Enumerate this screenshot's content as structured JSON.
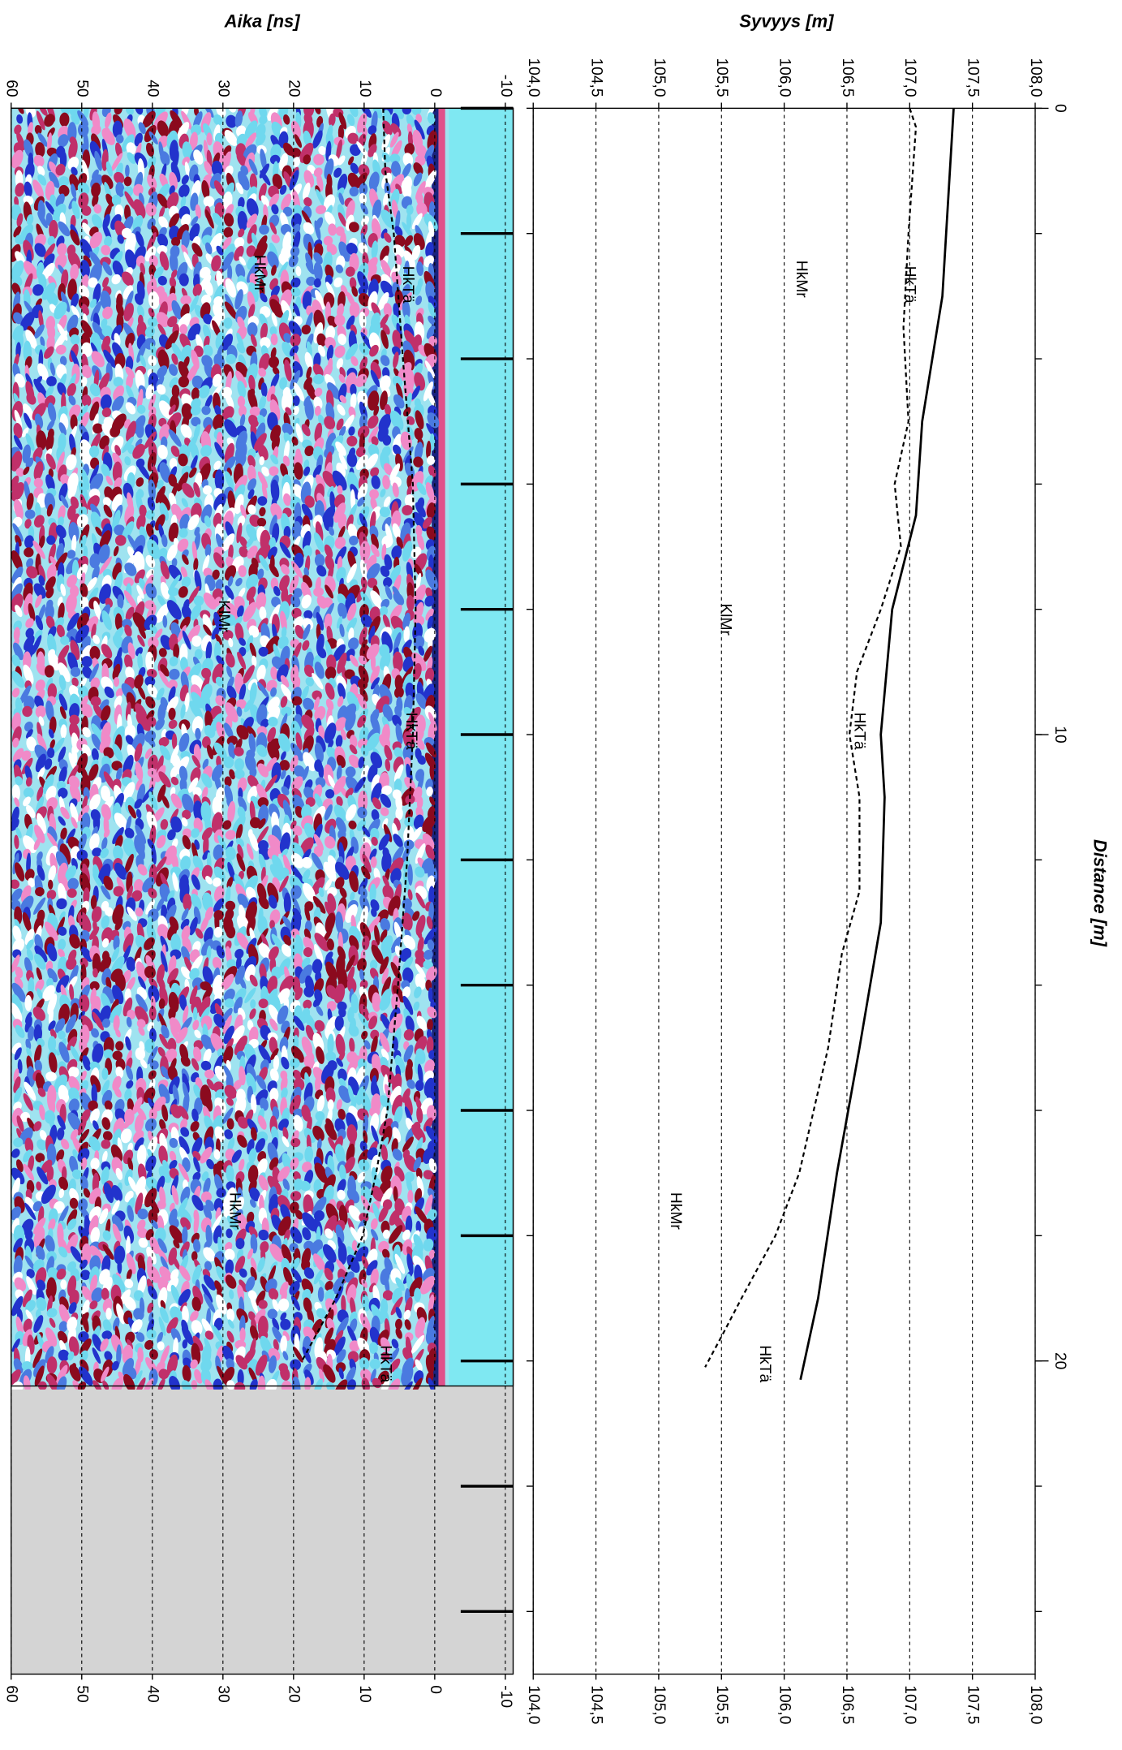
{
  "chart_data": [
    {
      "type": "line",
      "ylabel": "Syvyys [m]",
      "xlabel": "Distance [m]",
      "xlim": [
        0,
        25
      ],
      "xticks": [
        0,
        10,
        20
      ],
      "minor_xticks": [
        0,
        2,
        4,
        6,
        8,
        10,
        12,
        14,
        16,
        18,
        20,
        22,
        24
      ],
      "ylim": [
        104.0,
        108.0
      ],
      "yticks": [
        {
          "value": 104.0,
          "label": "104,0"
        },
        {
          "value": 104.5,
          "label": "104,5"
        },
        {
          "value": 105.0,
          "label": "105,0"
        },
        {
          "value": 105.5,
          "label": "105,5"
        },
        {
          "value": 106.0,
          "label": "106,0"
        },
        {
          "value": 106.5,
          "label": "106,5"
        },
        {
          "value": 107.0,
          "label": "107,0"
        },
        {
          "value": 107.5,
          "label": "107,5"
        },
        {
          "value": 108.0,
          "label": "108,0"
        }
      ],
      "grid": true,
      "series": [
        {
          "style": "solid",
          "color": "#000000",
          "x": [
            0,
            3,
            5,
            6.5,
            8,
            10,
            11,
            13,
            15,
            17,
            19,
            20.3
          ],
          "values": [
            107.35,
            107.26,
            107.1,
            107.05,
            106.86,
            106.77,
            106.8,
            106.77,
            106.6,
            106.42,
            106.27,
            106.13
          ]
        },
        {
          "style": "dashed",
          "color": "#000000",
          "x": [
            0,
            0.3,
            2,
            3.5,
            5,
            6,
            7,
            8,
            9,
            10,
            11,
            12.5,
            13.5,
            15,
            17,
            18,
            19,
            19.5,
            20.1
          ],
          "values": [
            107.0,
            107.05,
            106.99,
            106.95,
            106.99,
            106.88,
            106.93,
            106.77,
            106.58,
            106.52,
            106.6,
            106.6,
            106.46,
            106.35,
            106.12,
            105.93,
            105.66,
            105.53,
            105.37
          ]
        }
      ],
      "annotations": [
        "HkTä",
        "HkMr",
        "KlMr",
        "HkTä",
        "HkMr",
        "HkTä"
      ]
    },
    {
      "type": "radargram",
      "ylabel": "Aika [ns]",
      "xlim": [
        0,
        25
      ],
      "minor_xticks": [
        0,
        2,
        4,
        6,
        8,
        10,
        12,
        14,
        16,
        18,
        20,
        22,
        24
      ],
      "data_end": 20.4,
      "ylim": [
        -10,
        60
      ],
      "yticks": [
        -10,
        0,
        10,
        20,
        30,
        40,
        50,
        60
      ],
      "grid": true,
      "series": [
        {
          "style": "dashed",
          "color": "#000000",
          "x": [
            0,
            1,
            2,
            4,
            6,
            8,
            10,
            12,
            14,
            16,
            17,
            18,
            19,
            20
          ],
          "values": [
            7.3,
            7,
            5.8,
            4.5,
            3.1,
            2.7,
            3.1,
            3.9,
            5.2,
            6.7,
            8.3,
            10.2,
            14,
            18.8
          ]
        }
      ],
      "annotations": [
        "HkTä",
        "HkMr",
        "KlMr",
        "HkTä",
        "HkMr",
        "HkTä"
      ]
    }
  ]
}
